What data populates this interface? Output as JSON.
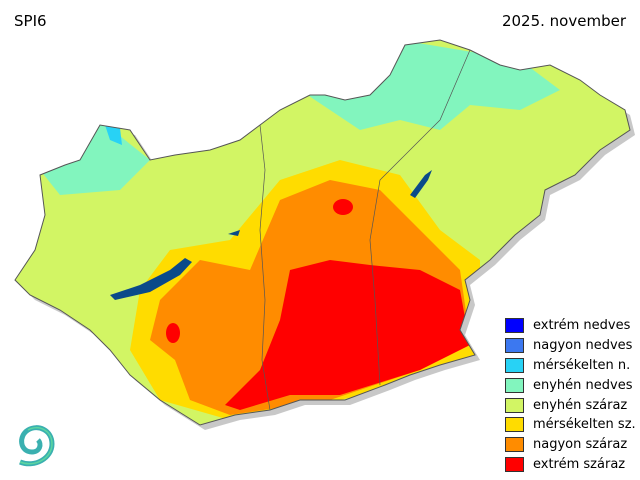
{
  "header": {
    "index_label": "SPI6",
    "period": "2025. november"
  },
  "legend": [
    {
      "label": "extrém nedves",
      "color": "#0000ff"
    },
    {
      "label": "nagyon nedves",
      "color": "#3c78f0"
    },
    {
      "label": "mérsékelten n.",
      "color": "#28d2f5"
    },
    {
      "label": "enyhén nedves",
      "color": "#82f5be"
    },
    {
      "label": "enyhén száraz",
      "color": "#d2f564"
    },
    {
      "label": "mérsékelten sz.",
      "color": "#ffdc00"
    },
    {
      "label": "nagyon száraz",
      "color": "#ff8c00"
    },
    {
      "label": "extrém száraz",
      "color": "#ff0000"
    }
  ],
  "colors": {
    "lake": "#0a4a8a",
    "border": "#555555",
    "shadow": "#c8c8c8"
  },
  "logo": {
    "icon": "spiral-logo-icon"
  }
}
